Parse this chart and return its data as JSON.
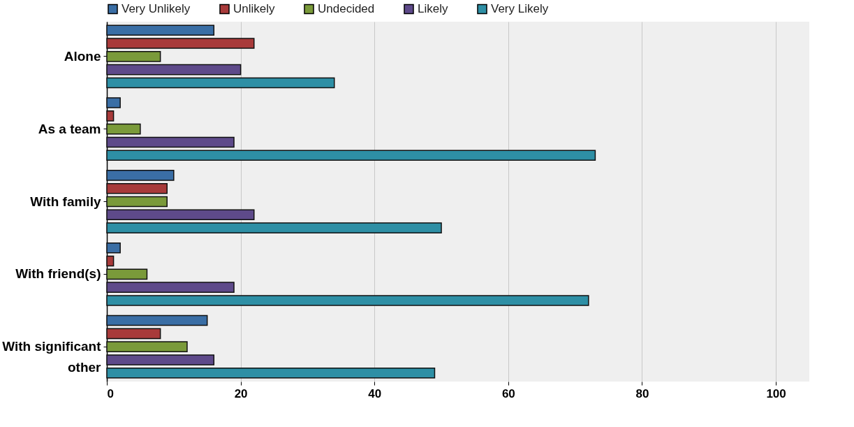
{
  "chart_data": {
    "type": "bar",
    "orientation": "horizontal",
    "categories": [
      "Alone",
      "As a team",
      "With family",
      "With friend(s)",
      "With significant other"
    ],
    "series": [
      {
        "name": "Very Unlikely",
        "color": "#3a6ea5",
        "values": [
          16,
          2,
          10,
          2,
          15
        ]
      },
      {
        "name": "Unlikely",
        "color": "#a83a3a",
        "values": [
          22,
          1,
          9,
          1,
          8
        ]
      },
      {
        "name": "Undecided",
        "color": "#7a9a3a",
        "values": [
          8,
          5,
          9,
          6,
          12
        ]
      },
      {
        "name": "Likely",
        "color": "#5e4a8a",
        "values": [
          20,
          19,
          22,
          19,
          16
        ]
      },
      {
        "name": "Very Likely",
        "color": "#2e8fa5",
        "values": [
          34,
          73,
          50,
          72,
          49
        ]
      }
    ],
    "xlim": [
      0,
      105
    ],
    "xticks": [
      0,
      20,
      40,
      60,
      80,
      100
    ],
    "grid": "x",
    "legend": "top"
  }
}
